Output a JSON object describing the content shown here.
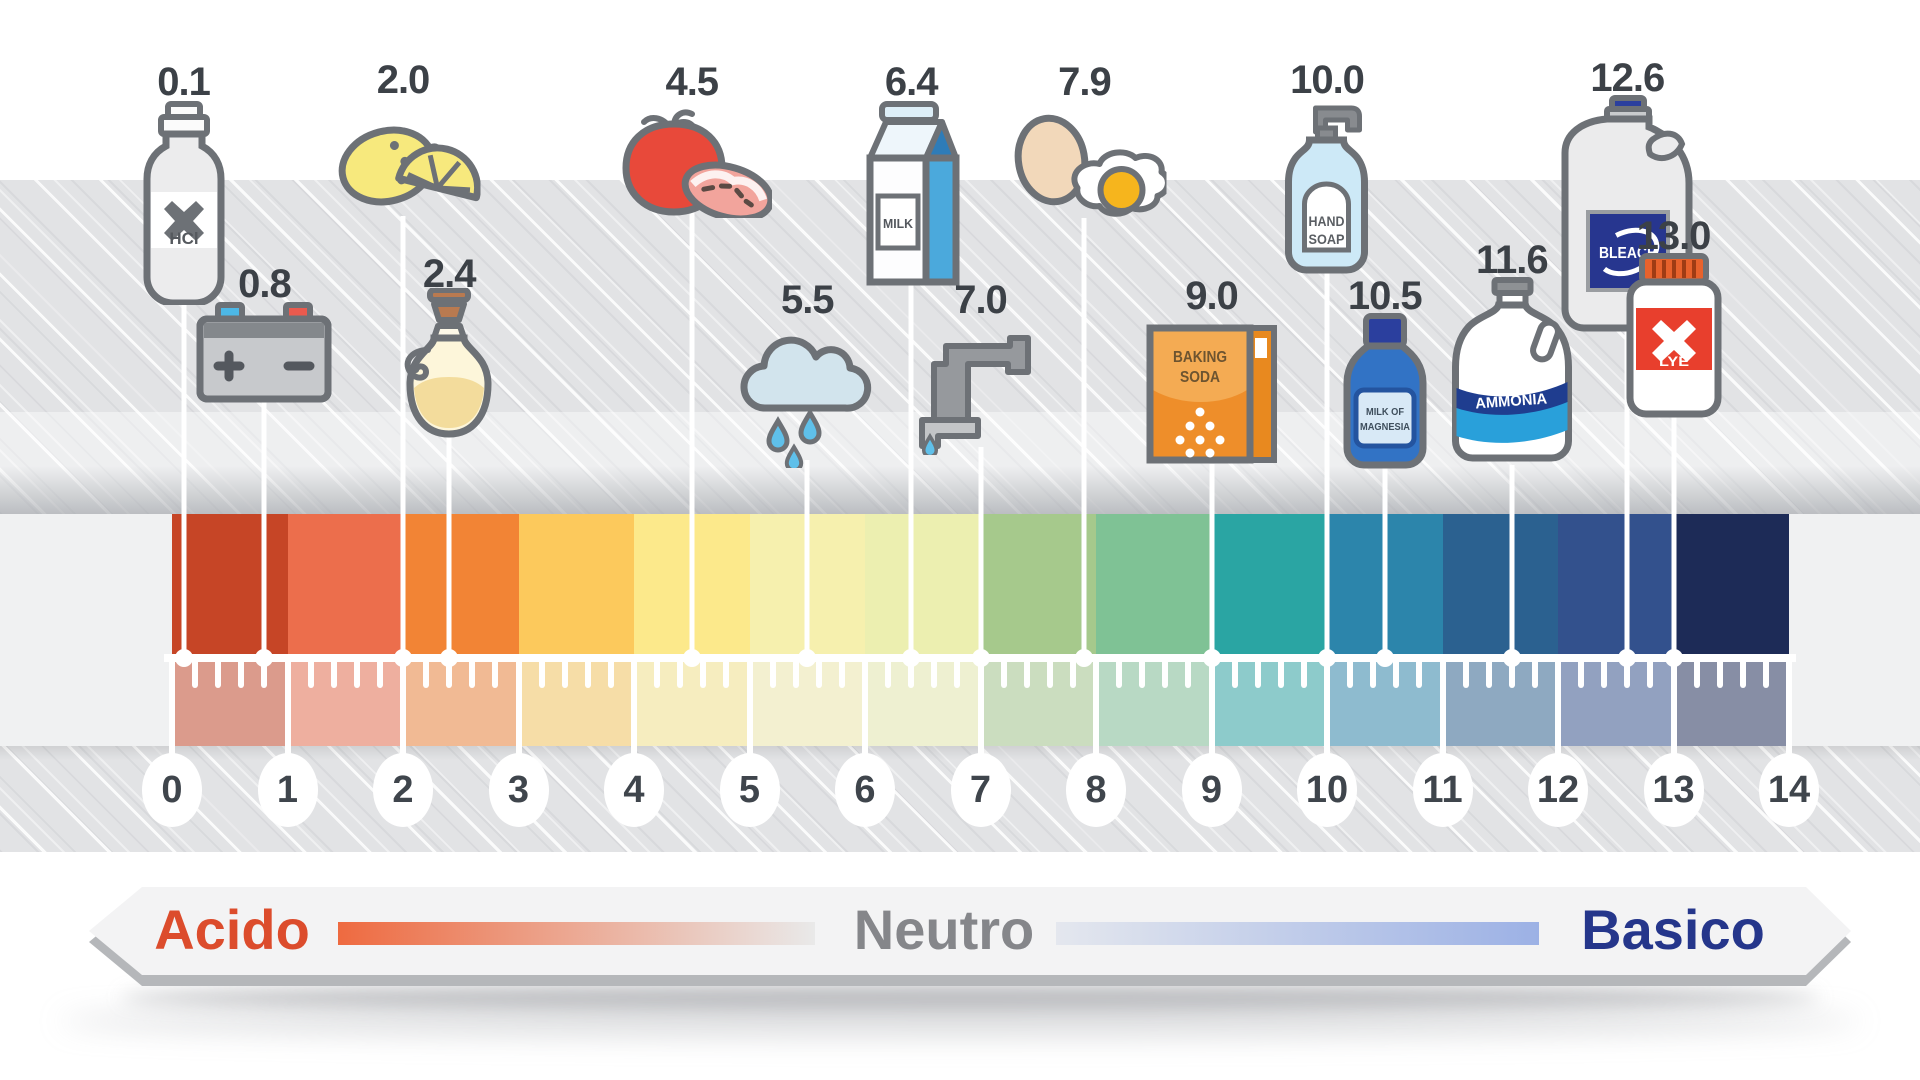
{
  "scale": {
    "min": 0,
    "max": 14,
    "numbers": [
      "0",
      "1",
      "2",
      "3",
      "4",
      "5",
      "6",
      "7",
      "8",
      "9",
      "10",
      "11",
      "12",
      "13",
      "14"
    ],
    "segment_colors": [
      "#c64526",
      "#ec6e4c",
      "#f28435",
      "#fcc95c",
      "#fce98b",
      "#f6f0ae",
      "#ecefb0",
      "#a6c98c",
      "#7fc295",
      "#2aa5a3",
      "#2c85ab",
      "#2b6190",
      "#33518d",
      "#1d2b57"
    ],
    "ticks_per_unit": 5
  },
  "items": [
    {
      "name": "hydrochloric-acid",
      "ph": 0.1,
      "ph_label": "0.1",
      "icon": "hcl-bottle",
      "texts": [
        "HCl"
      ]
    },
    {
      "name": "battery-acid",
      "ph": 0.8,
      "ph_label": "0.8",
      "icon": "car-battery",
      "texts": []
    },
    {
      "name": "lemon",
      "ph": 2.0,
      "ph_label": "2.0",
      "icon": "lemon",
      "texts": []
    },
    {
      "name": "vinegar",
      "ph": 2.4,
      "ph_label": "2.4",
      "icon": "vinegar-cruet",
      "texts": []
    },
    {
      "name": "tomato",
      "ph": 4.5,
      "ph_label": "4.5",
      "icon": "tomato",
      "texts": []
    },
    {
      "name": "acid-rain",
      "ph": 5.5,
      "ph_label": "5.5",
      "icon": "rain-cloud",
      "texts": []
    },
    {
      "name": "milk",
      "ph": 6.4,
      "ph_label": "6.4",
      "icon": "milk-carton",
      "texts": [
        "MILK"
      ]
    },
    {
      "name": "tap-water",
      "ph": 7.0,
      "ph_label": "7.0",
      "icon": "water-tap",
      "texts": []
    },
    {
      "name": "egg",
      "ph": 7.9,
      "ph_label": "7.9",
      "icon": "egg",
      "texts": []
    },
    {
      "name": "baking-soda",
      "ph": 9.0,
      "ph_label": "9.0",
      "icon": "baking-soda-box",
      "texts": [
        "BAKING",
        "SODA"
      ]
    },
    {
      "name": "hand-soap",
      "ph": 10.0,
      "ph_label": "10.0",
      "icon": "soap-pump",
      "texts": [
        "HAND",
        "SOAP"
      ]
    },
    {
      "name": "milk-of-magnesia",
      "ph": 10.5,
      "ph_label": "10.5",
      "icon": "magnesia-bottle",
      "texts": [
        "MILK OF",
        "MAGNESIA"
      ]
    },
    {
      "name": "ammonia",
      "ph": 11.6,
      "ph_label": "11.6",
      "icon": "ammonia-jug",
      "texts": [
        "AMMONIA"
      ]
    },
    {
      "name": "bleach",
      "ph": 12.6,
      "ph_label": "12.6",
      "icon": "bleach-jug",
      "texts": [
        "BLEACH"
      ]
    },
    {
      "name": "lye",
      "ph": 13.0,
      "ph_label": "13.0",
      "icon": "lye-jar",
      "texts": [
        "LYE"
      ]
    }
  ],
  "footer": {
    "acid": "Acido",
    "neutral": "Neutro",
    "basic": "Basico",
    "acid_color": "#dc4c2c",
    "neutral_color": "#85868a",
    "basic_color": "#25368b",
    "acid_gradient_start": "#ee6a40",
    "basic_gradient_end": "#9cb1e5"
  }
}
